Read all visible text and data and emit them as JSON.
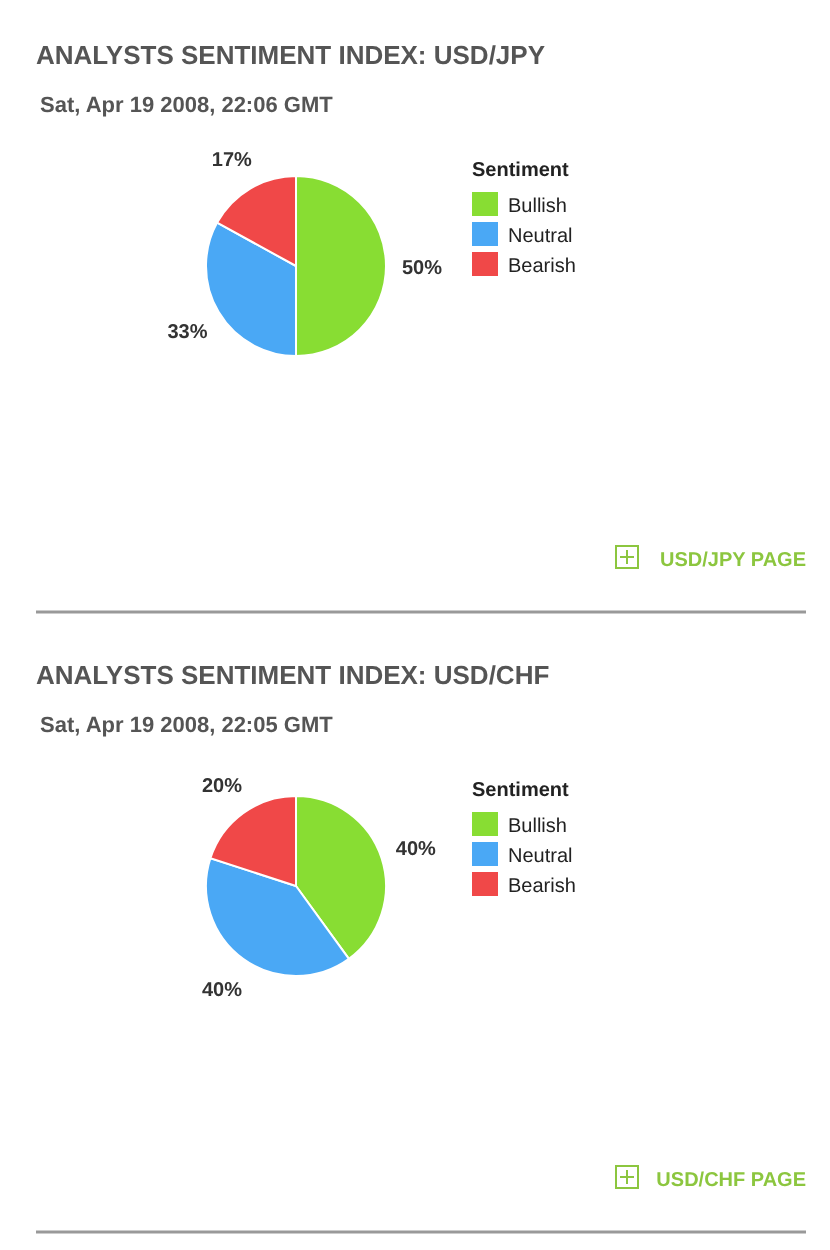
{
  "chart_data": [
    {
      "type": "pie",
      "title": "ANALYSTS SENTIMENT INDEX: USD/JPY",
      "subtitle": "Sat, Apr 19 2008, 22:06 GMT",
      "legend_title": "Sentiment",
      "legend": "right",
      "categories": [
        "Bullish",
        "Neutral",
        "Bearish"
      ],
      "values": [
        50,
        33,
        17
      ],
      "value_labels": [
        "50%",
        "33%",
        "17%"
      ],
      "colors": [
        "#88dd33",
        "#4aa8f5",
        "#f04848"
      ],
      "annotations": [
        "USD/JPY PAGE"
      ]
    },
    {
      "type": "pie",
      "title": "ANALYSTS SENTIMENT INDEX: USD/CHF",
      "subtitle": "Sat, Apr 19 2008, 22:05 GMT",
      "legend_title": "Sentiment",
      "legend": "right",
      "categories": [
        "Bullish",
        "Neutral",
        "Bearish"
      ],
      "values": [
        40,
        40,
        20
      ],
      "value_labels": [
        "40%",
        "40%",
        "20%"
      ],
      "colors": [
        "#88dd33",
        "#4aa8f5",
        "#f04848"
      ],
      "annotations": [
        "USD/CHF PAGE"
      ]
    }
  ]
}
